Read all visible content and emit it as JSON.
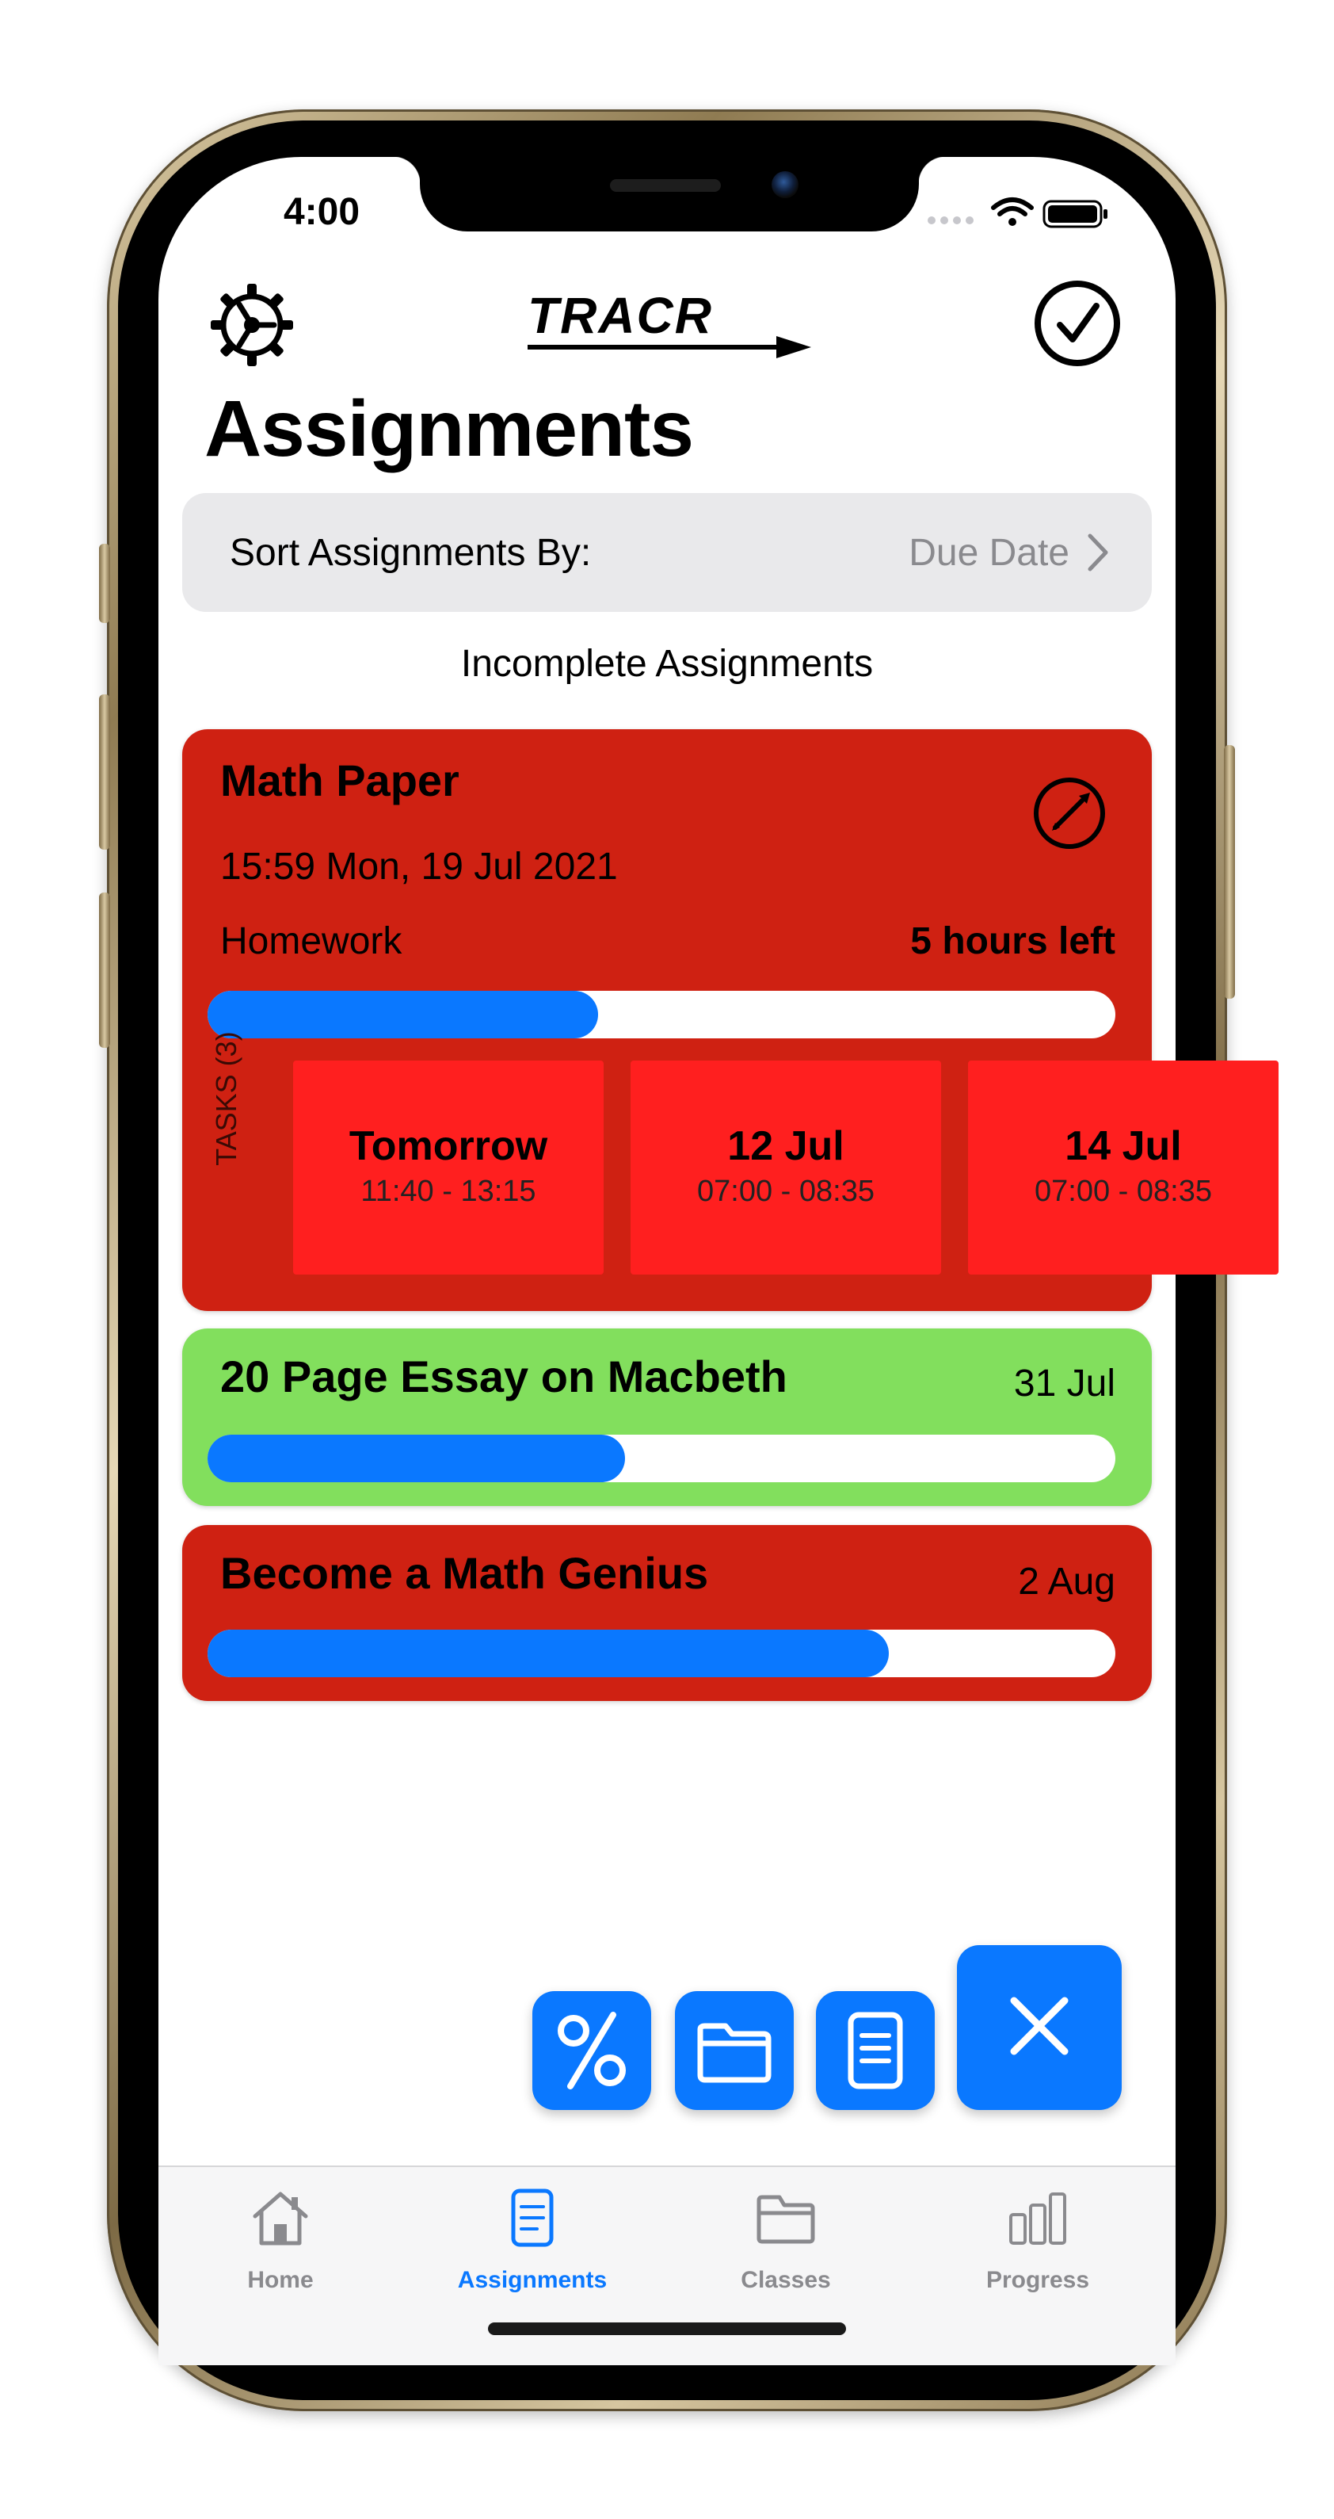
{
  "status_bar": {
    "time": "4:00"
  },
  "header": {
    "logo_text": "TRACR",
    "title": "Assignments"
  },
  "sort": {
    "label": "Sort Assignments By:",
    "value": "Due Date"
  },
  "section_title": "Incomplete Assignments",
  "assignments": [
    {
      "title": "Math Paper",
      "due": "15:59 Mon, 19 Jul 2021",
      "type": "Homework",
      "time_left": "5 hours left",
      "progress": 0.43,
      "color": "#cf2112",
      "tasks_label": "TASKS (3)",
      "tasks": [
        {
          "day": "Tomorrow",
          "time": "11:40 - 13:15"
        },
        {
          "day": "12 Jul",
          "time": "07:00 - 08:35"
        },
        {
          "day": "14 Jul",
          "time": "07:00 - 08:35"
        }
      ]
    },
    {
      "title": "20 Page Essay on Macbeth",
      "due": "31 Jul",
      "progress": 0.46,
      "color": "#82df5d"
    },
    {
      "title": "Become a Math Genius",
      "due": "2 Aug",
      "progress": 0.75,
      "color": "#cf2112"
    }
  ],
  "fab_buttons": [
    "percent-icon",
    "folder-icon",
    "document-icon",
    "close-icon"
  ],
  "tab_bar": {
    "items": [
      {
        "label": "Home",
        "icon": "house-icon"
      },
      {
        "label": "Assignments",
        "icon": "document-icon",
        "active": true
      },
      {
        "label": "Classes",
        "icon": "folder-icon"
      },
      {
        "label": "Progress",
        "icon": "bar-chart-icon"
      }
    ]
  },
  "colors": {
    "accent": "#0a78ff",
    "overdue": "#cf2112",
    "ok": "#82df5d",
    "task": "#ff1f1f"
  }
}
